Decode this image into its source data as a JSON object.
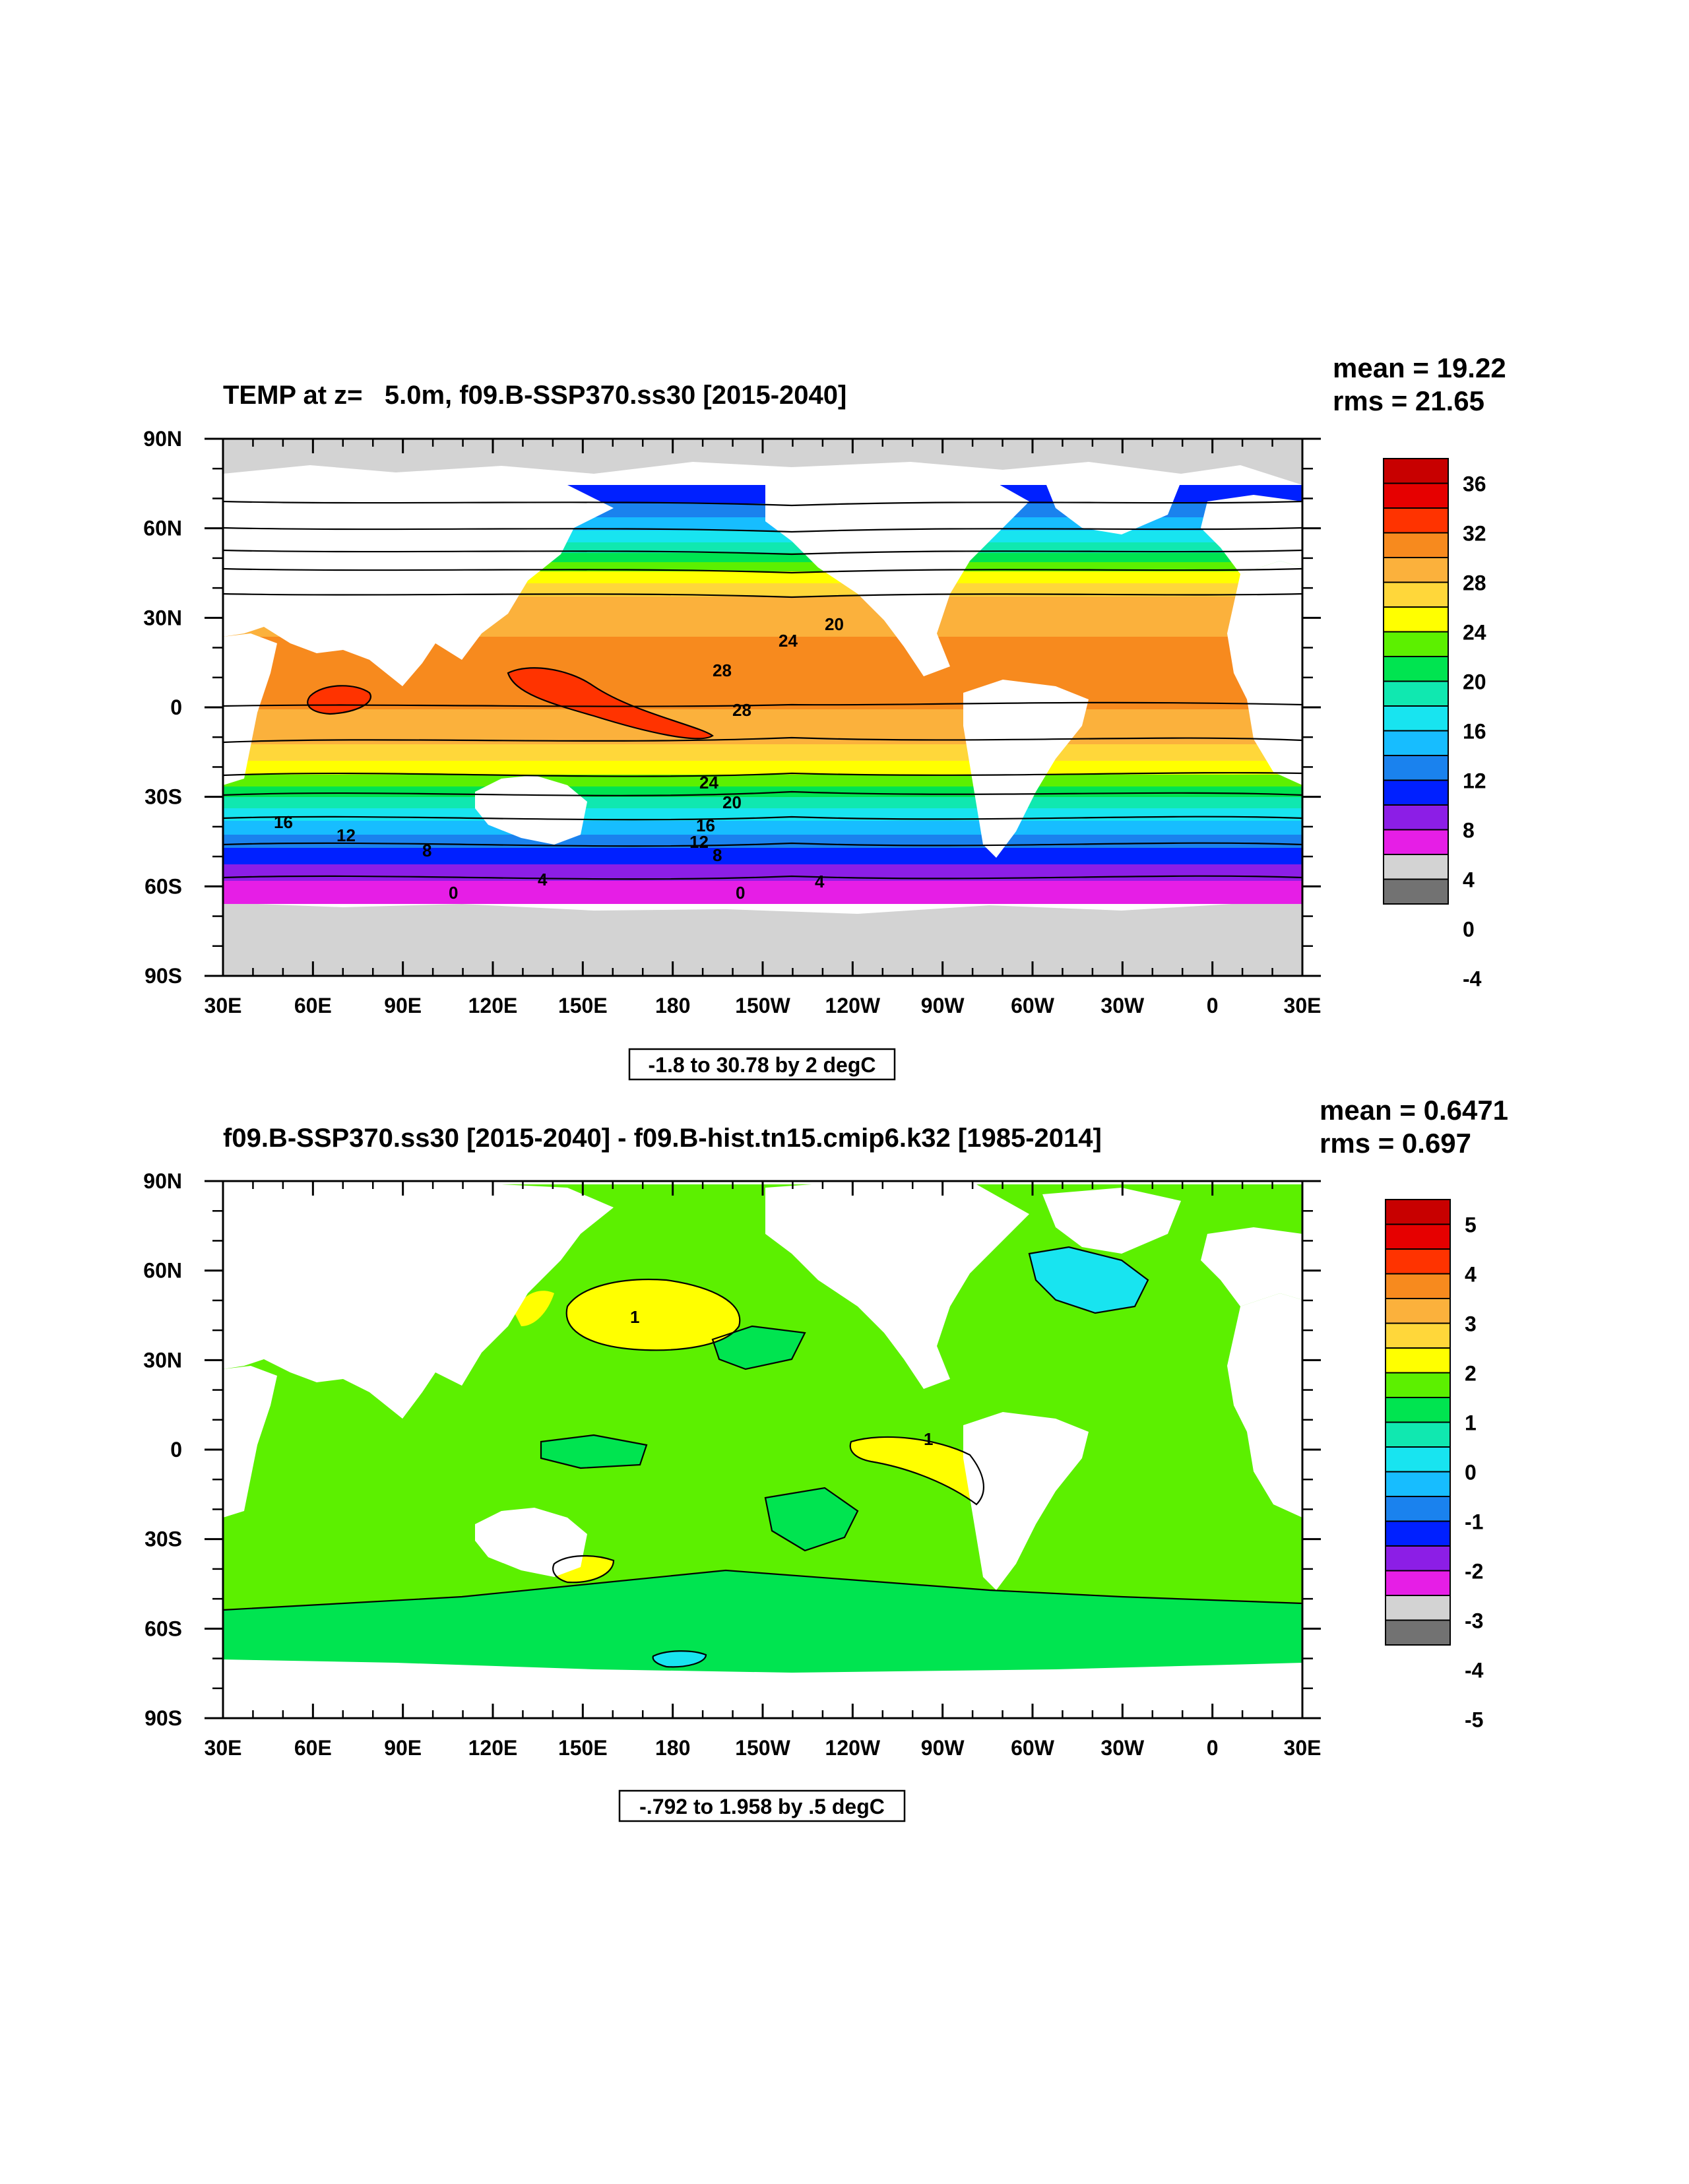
{
  "axes": {
    "lon_labels": [
      "30E",
      "60E",
      "90E",
      "120E",
      "150E",
      "180",
      "150W",
      "120W",
      "90W",
      "60W",
      "30W",
      "0",
      "30E"
    ],
    "lat_labels": [
      "90N",
      "60N",
      "30N",
      "0",
      "30S",
      "60S",
      "90S"
    ]
  },
  "panels": [
    {
      "id": "top",
      "title": "TEMP at z=   5.0m, f09.B-SSP370.ss30 [2015-2040]",
      "mean_text": "mean = 19.22",
      "rms_text": "rms = 21.65",
      "range_text": "-1.8 to 30.78 by 2 degC",
      "colorbar": {
        "labels": [
          "36",
          "32",
          "28",
          "24",
          "20",
          "16",
          "12",
          "8",
          "4",
          "0",
          "-4"
        ],
        "colors": [
          "#c80000",
          "#e60000",
          "#ff3300",
          "#f78a1e",
          "#fbb13c",
          "#ffd73a",
          "#ffff00",
          "#5cf000",
          "#00e450",
          "#10e8b0",
          "#18e4f0",
          "#17bdff",
          "#1a82ee",
          "#0020ff",
          "#8c1ee6",
          "#e61ee6",
          "#d3d3d3",
          "#727272"
        ]
      },
      "contour_labels": [
        "24",
        "20",
        "28",
        "28",
        "24",
        "20",
        "16",
        "16",
        "12",
        "12",
        "8",
        "8",
        "4",
        "4",
        "0",
        "0"
      ]
    },
    {
      "id": "bottom",
      "title": "f09.B-SSP370.ss30 [2015-2040] - f09.B-hist.tn15.cmip6.k32 [1985-2014]",
      "mean_text": "mean = 0.6471",
      "rms_text": "rms = 0.697",
      "range_text": "-.792 to 1.958 by .5 degC",
      "colorbar": {
        "labels": [
          "5",
          "4",
          "3",
          "2",
          "1",
          "0",
          "-1",
          "-2",
          "-3",
          "-4",
          "-5"
        ],
        "colors": [
          "#c80000",
          "#e60000",
          "#ff3300",
          "#f78a1e",
          "#fbb13c",
          "#ffd73a",
          "#ffff00",
          "#5cf000",
          "#00e450",
          "#10e8b0",
          "#18e4f0",
          "#17bdff",
          "#1a82ee",
          "#0020ff",
          "#8c1ee6",
          "#e61ee6",
          "#d3d3d3",
          "#727272"
        ]
      },
      "contour_labels": [
        "1",
        "1"
      ]
    }
  ]
}
